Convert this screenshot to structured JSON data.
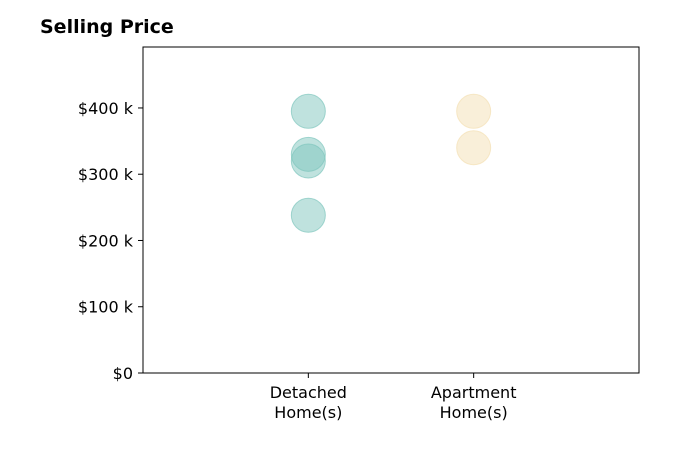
{
  "chart_data": {
    "type": "scatter",
    "title": "Selling Price",
    "categories": [
      "Detached\nHome(s)",
      "Apartment\nHome(s)"
    ],
    "series": [
      {
        "category": "Detached\nHome(s)",
        "values": [
          395000,
          330000,
          320000,
          238000
        ],
        "color": "#7fc6bd"
      },
      {
        "category": "Apartment\nHome(s)",
        "values": [
          395000,
          340000
        ],
        "color": "#f3dfb3"
      }
    ],
    "yticks": [
      0,
      100000,
      200000,
      300000,
      400000
    ],
    "ytick_labels": [
      "$0",
      "$100 k",
      "$200 k",
      "$300 k",
      "$400 k"
    ],
    "ylim": [
      0,
      492000
    ],
    "xlim": [
      0,
      3
    ],
    "grid": false
  }
}
